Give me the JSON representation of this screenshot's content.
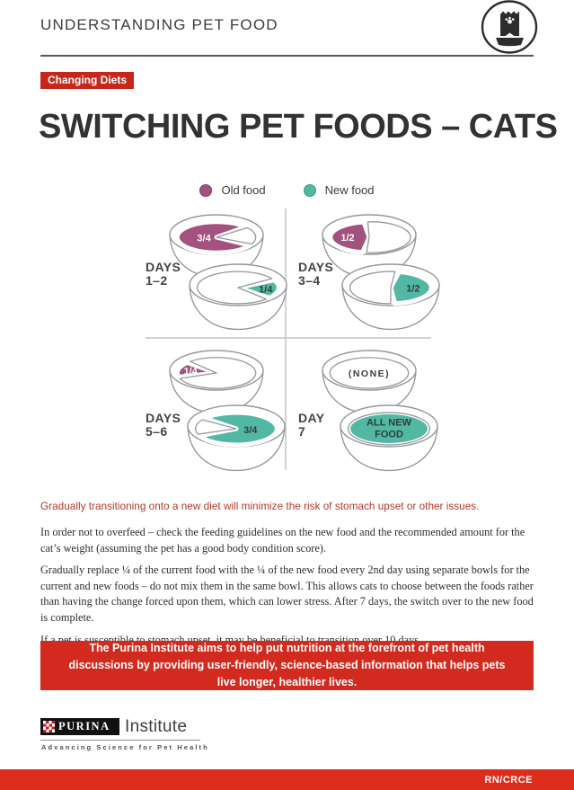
{
  "header": {
    "title": "UNDERSTANDING PET FOOD"
  },
  "badge": {
    "label": "Changing Diets"
  },
  "doc_title": "SWITCHING PET FOODS – CATS",
  "legend": {
    "old": {
      "label": "Old food",
      "color": "#a3517f"
    },
    "new": {
      "label": "New food",
      "color": "#52b8a4"
    }
  },
  "diagram": {
    "colors": {
      "old": "#a3517f",
      "new": "#52b8a4",
      "outline": "#94989b",
      "label_on_new": "#2e3e3a"
    },
    "quadrants": [
      {
        "label_lines": [
          "DAYS",
          "1–2"
        ],
        "bowls": [
          {
            "food": "old",
            "food_arc": [
              32,
              318
            ],
            "food_label": "3/4",
            "label_r": 0.32,
            "empty_arc": [
              -38,
              26
            ]
          },
          {
            "food": "new",
            "food_arc": [
              -28,
              40
            ],
            "food_label": "1/4",
            "label_r": 0.68,
            "empty_arc": [
              46,
              326
            ]
          }
        ]
      },
      {
        "label_lines": [
          "DAYS",
          "3–4"
        ],
        "bowls": [
          {
            "food": "old",
            "food_arc": [
              100,
              262
            ],
            "food_label": "1/2",
            "label_r": 0.55,
            "empty_arc": [
              -92,
              94
            ]
          },
          {
            "food": "new",
            "food_arc": [
              -78,
              84
            ],
            "food_label": "1/2",
            "label_r": 0.55,
            "empty_arc": [
              90,
              276
            ]
          }
        ]
      },
      {
        "label_lines": [
          "DAYS",
          "5–6"
        ],
        "bowls": [
          {
            "food": "old",
            "food_arc": [
              165,
              222
            ],
            "food_label": "1/4",
            "label_r": 0.68,
            "empty_arc": [
              228,
              519
            ]
          },
          {
            "food": "new",
            "food_arc": [
              220,
              514
            ],
            "food_label": "3/4",
            "label_r": 0.35,
            "empty_arc": [
              160,
              214
            ]
          }
        ]
      },
      {
        "label_lines": [
          "DAY",
          "7"
        ],
        "bowls": [
          {
            "food": null,
            "empty_arc": "full",
            "center_label": "(NONE)"
          },
          {
            "food": "new",
            "food_arc": "full",
            "food_label": "ALL NEW\nFOOD"
          }
        ]
      }
    ]
  },
  "lead_sentence": "Gradually transitioning onto a new diet will minimize the risk of stomach upset or other issues.",
  "paragraphs": [
    "In order not to overfeed – check the feeding guidelines on the new food and the recommended amount for the cat’s weight (assuming the pet has a good body condition score).",
    "Gradually replace ¼ of the current food with the ¼ of the new food every 2nd day using separate bowls for the current and new foods – do not mix them in the same bowl. This allows cats to choose between the foods rather than having the change forced upon them, which can lower stress. After 7 days, the switch over to the new food is complete.",
    "If a pet is susceptible to stomach upset, it may be beneficial to transition over 10 days."
  ],
  "callout": "The Purina Institute aims to help put nutrition at the forefront of pet health discussions by providing user-friendly, science-based information that helps pets live longer, healthier lives.",
  "footer": {
    "logo_word": "PURINA",
    "logo_suffix": "Institute",
    "tagline": "Advancing Science for Pet Health",
    "doc_code": "RN/CRCE"
  }
}
